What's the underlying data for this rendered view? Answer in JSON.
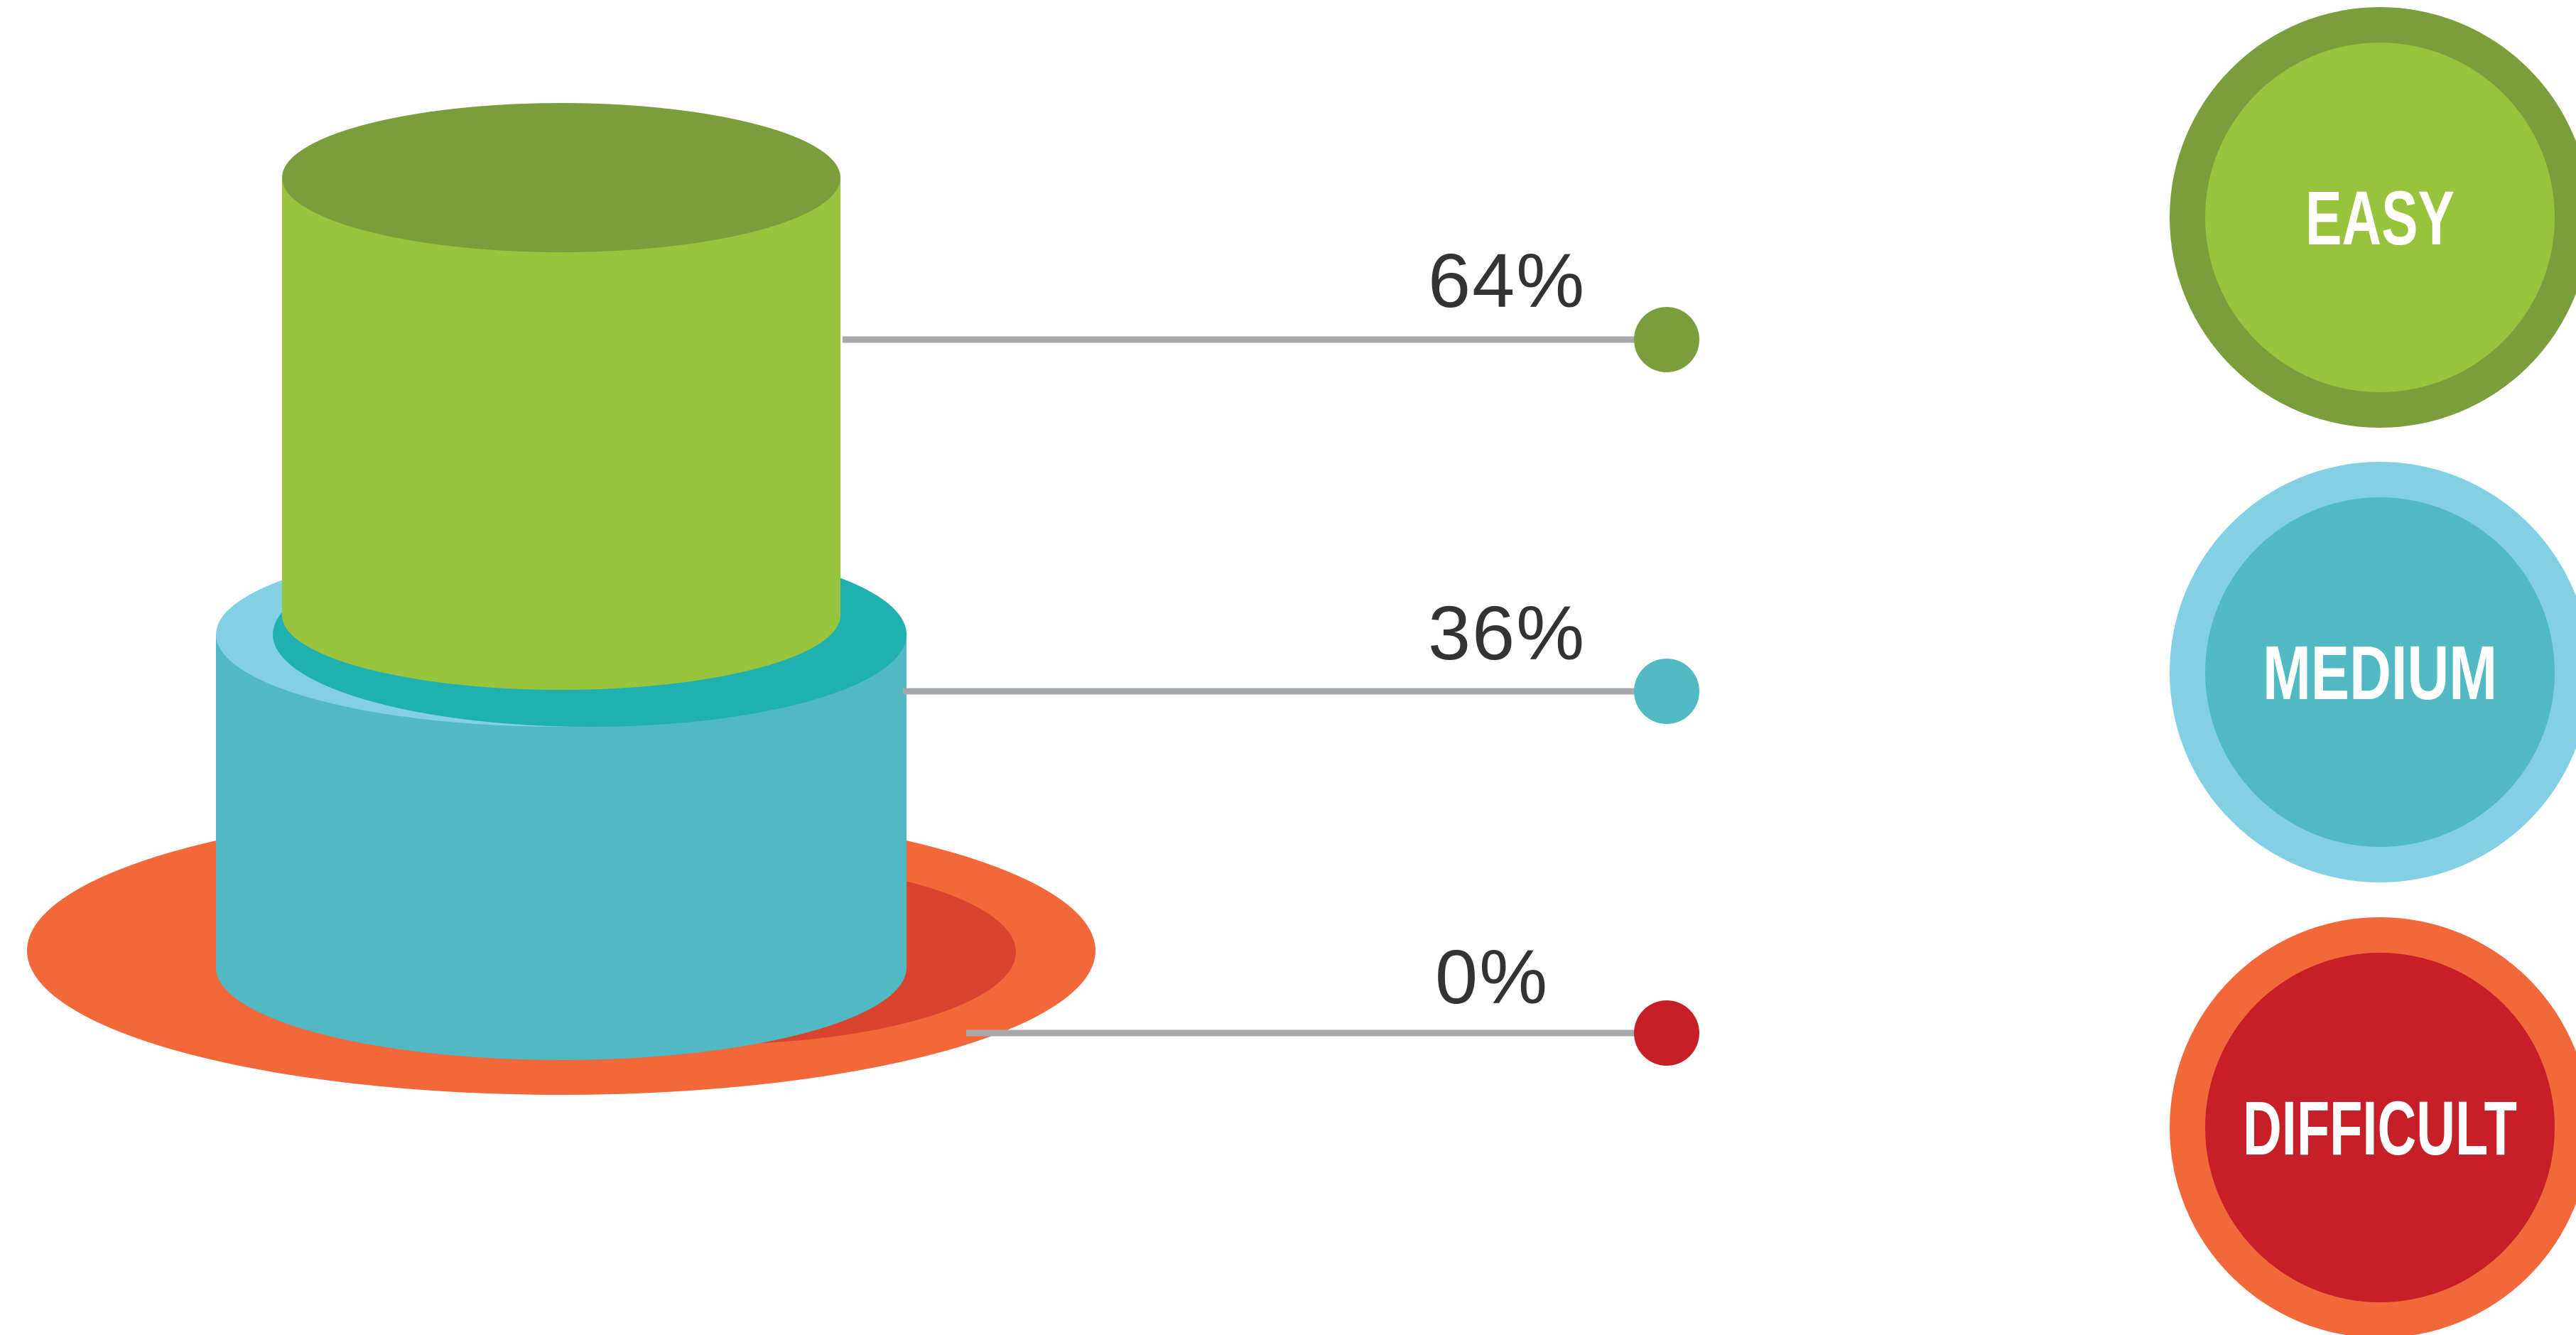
{
  "chart_data": {
    "type": "bar",
    "categories": [
      "EASY",
      "MEDIUM",
      "DIFFICULT"
    ],
    "values": [
      64,
      36,
      0
    ],
    "value_labels": [
      "64%",
      "36%",
      "0%"
    ],
    "unit": "%",
    "colors": {
      "EASY": {
        "top": "#7a9e3c",
        "body": "#98c33c",
        "ring": "#7a9e3c",
        "fill": "#98c33c",
        "marker": "#7a9e3c"
      },
      "MEDIUM": {
        "top": "#1fb0b0",
        "body": "#50b9c1",
        "ring": "#83d0e4",
        "fill": "#50b9c1",
        "marker": "#50b9c1"
      },
      "DIFFICULT": {
        "top": "#d9432f",
        "body": "#f3683a",
        "ring": "#f3683a",
        "fill": "#c71f28",
        "marker": "#c71f28"
      }
    },
    "leader_color": "#a6a8ab",
    "legend_position": "right"
  }
}
